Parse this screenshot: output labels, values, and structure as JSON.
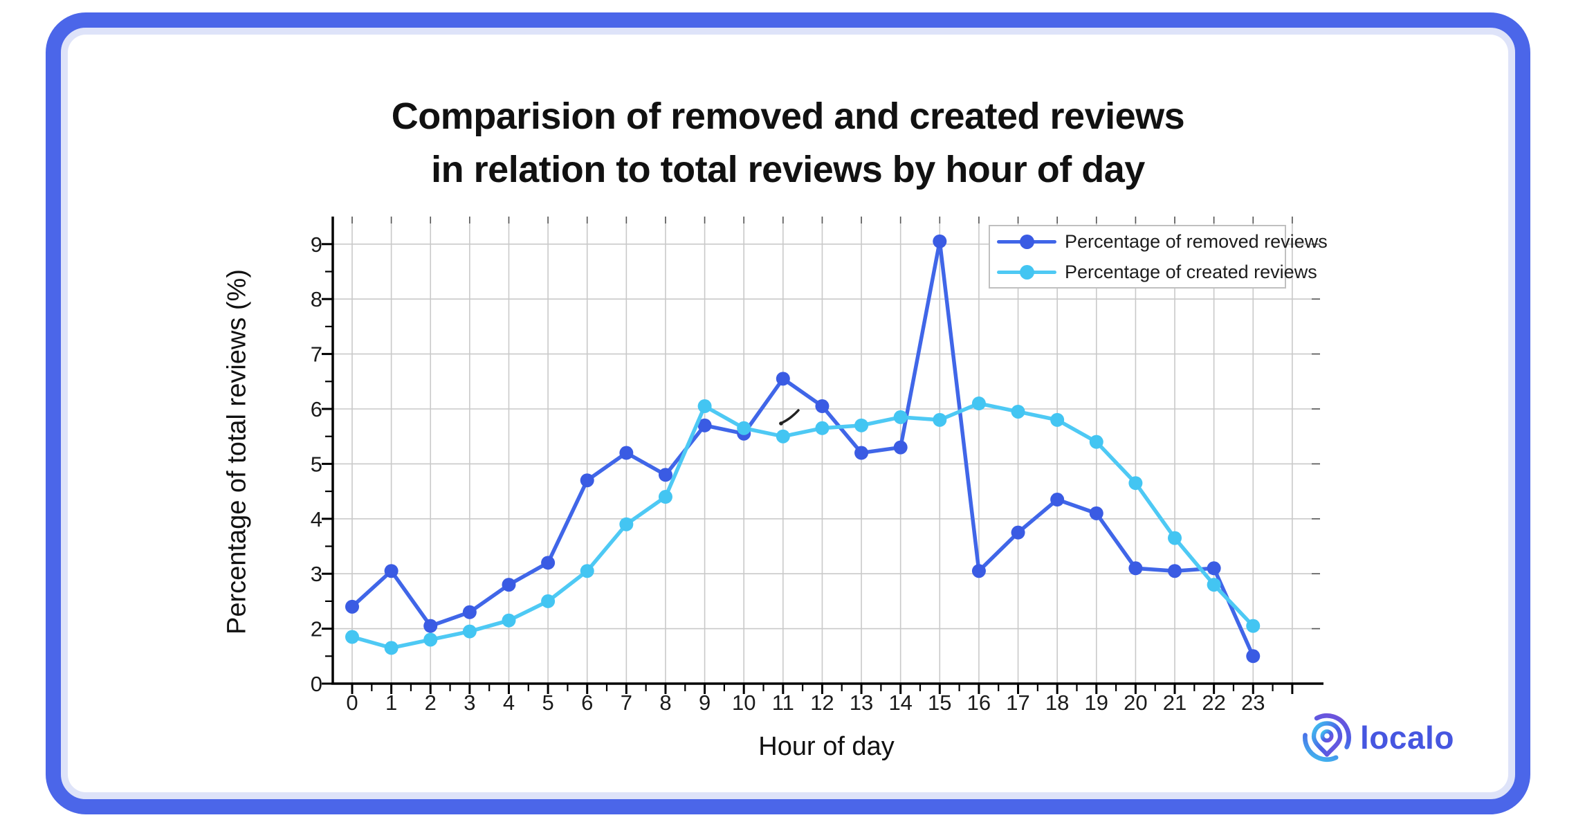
{
  "title": {
    "line1": "Comparision of removed and created reviews",
    "line2": "in relation to total reviews by hour of day"
  },
  "chart_data": {
    "type": "line",
    "title": "Comparision of removed and created reviews in relation to total reviews by hour of day",
    "xlabel": "Hour of day",
    "ylabel": "Percentage of total reviews (%)",
    "x": [
      0,
      1,
      2,
      3,
      4,
      5,
      6,
      7,
      8,
      9,
      10,
      11,
      12,
      13,
      14,
      15,
      16,
      17,
      18,
      19,
      20,
      21,
      22,
      23
    ],
    "xticklabels": [
      "0",
      "1",
      "2",
      "3",
      "4",
      "5",
      "6",
      "7",
      "8",
      "9",
      "10",
      "11",
      "12",
      "13",
      "14",
      "15",
      "16",
      "17",
      "18",
      "19",
      "20",
      "21",
      "22",
      "23"
    ],
    "yticks": [
      0,
      2,
      3,
      4,
      5,
      6,
      7,
      8,
      9
    ],
    "ylim": [
      0,
      9.5
    ],
    "grid": true,
    "legend_position": "top-right",
    "series": [
      {
        "name": "Percentage of removed reviews",
        "color": "#4066e8",
        "marker_color": "#3a5be3",
        "values": [
          2.4,
          3.05,
          2.05,
          2.3,
          2.8,
          3.2,
          4.7,
          5.2,
          4.8,
          5.7,
          5.55,
          6.55,
          6.05,
          5.2,
          5.3,
          9.05,
          3.05,
          3.75,
          4.35,
          4.1,
          3.1,
          3.05,
          3.1,
          1.5
        ]
      },
      {
        "name": "Percentage of created reviews",
        "color": "#4ec9f4",
        "marker_color": "#43c5f2",
        "values": [
          1.85,
          1.65,
          1.8,
          1.95,
          2.15,
          2.5,
          3.05,
          3.9,
          4.4,
          6.05,
          5.65,
          5.5,
          5.65,
          5.7,
          5.85,
          5.8,
          6.1,
          5.95,
          5.8,
          5.4,
          4.65,
          3.65,
          2.8,
          2.05
        ]
      }
    ]
  },
  "colors": {
    "card_border": "#4b66e9",
    "card_inner_ring": "#dee3f9",
    "gridline": "#c9c9c9",
    "axis": "#000000",
    "tick_text": "#1a1a1a",
    "logo_blue": "#4656e0"
  },
  "logo": {
    "text": "localo"
  }
}
